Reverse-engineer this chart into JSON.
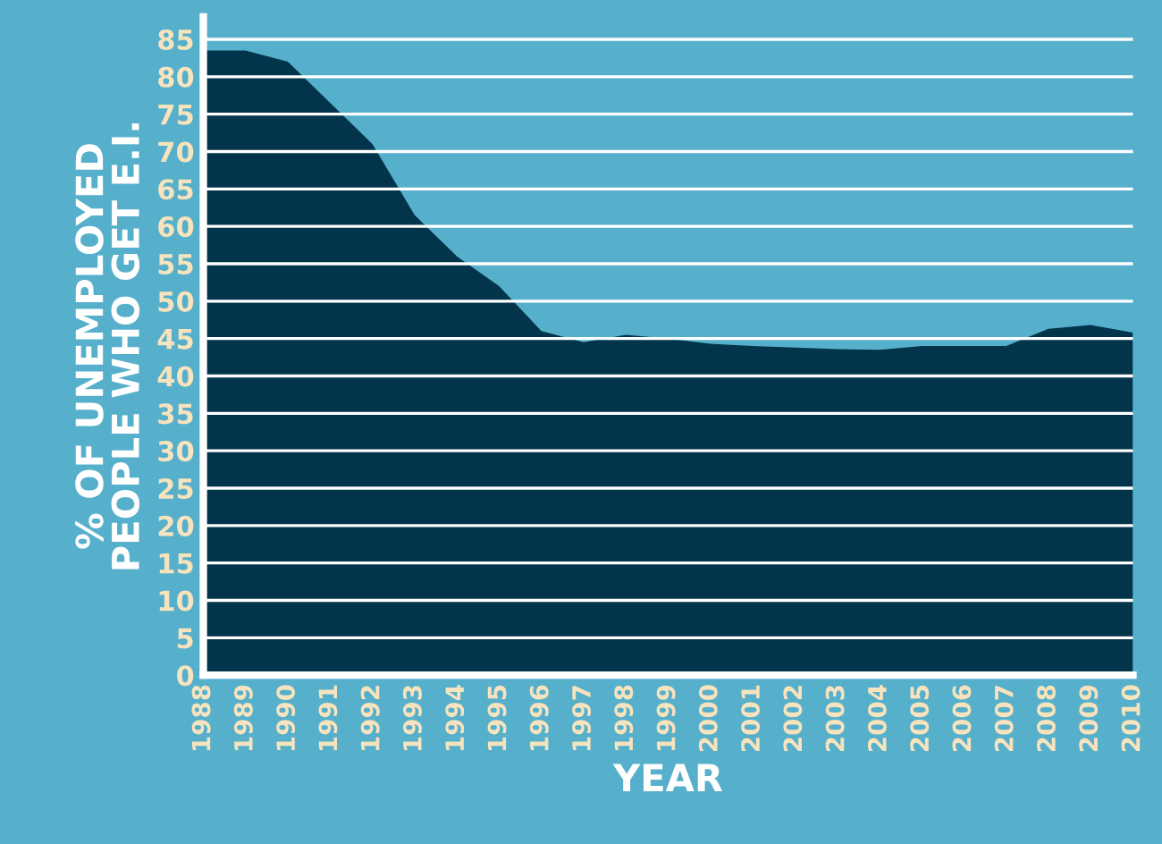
{
  "chart_data": {
    "type": "area",
    "xlabel": "YEAR",
    "ylabel": "% OF UNEMPLOYED\nPEOPLE WHO GET E.I.",
    "categories": [
      "1988",
      "1989",
      "1990",
      "1991",
      "1992",
      "1993",
      "1994",
      "1995",
      "1996",
      "1997",
      "1998",
      "1999",
      "2000",
      "2001",
      "2002",
      "2003",
      "2004",
      "2005",
      "2006",
      "2007",
      "2008",
      "2009",
      "2010"
    ],
    "series": [
      {
        "color": "#02354b",
        "values": [
          83.5,
          83.5,
          82,
          76.5,
          71,
          61.5,
          56,
          52,
          46,
          44.5,
          45.5,
          45,
          44.3,
          44,
          43.8,
          43.6,
          43.5,
          44,
          44,
          44,
          46.3,
          46.8,
          45.8
        ]
      }
    ],
    "ylim": [
      0,
      88
    ],
    "yticks": [
      0,
      5,
      10,
      15,
      20,
      25,
      30,
      35,
      40,
      45,
      50,
      55,
      60,
      65,
      70,
      75,
      80,
      85
    ],
    "grid": "y",
    "legend": false
  }
}
